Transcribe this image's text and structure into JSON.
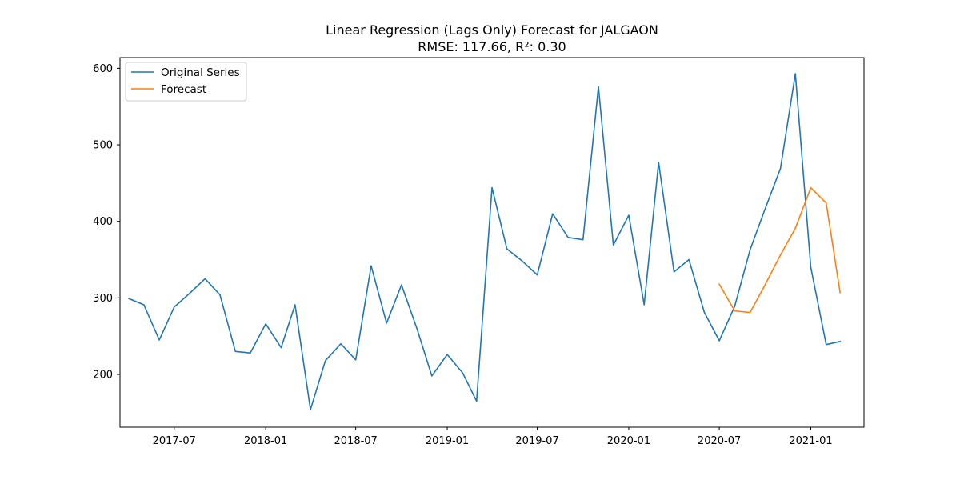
{
  "chart_data": {
    "type": "line",
    "title": "Linear Regression (Lags Only) Forecast for JALGAON",
    "subtitle": "RMSE: 117.66, R²: 0.30",
    "xlabel": "",
    "ylabel": "",
    "xlim": [
      "2017-03-14",
      "2021-04-18"
    ],
    "ylim": [
      131,
      614
    ],
    "x_ticks": [
      "2017-07",
      "2018-01",
      "2018-07",
      "2019-01",
      "2019-07",
      "2020-01",
      "2020-07",
      "2021-01"
    ],
    "y_ticks": [
      200,
      300,
      400,
      500,
      600
    ],
    "grid": false,
    "legend_position": "top-left",
    "series": [
      {
        "name": "Original Series",
        "color": "#1f77b4",
        "x": [
          "2017-04",
          "2017-05",
          "2017-06",
          "2017-07",
          "2017-08",
          "2017-09",
          "2017-10",
          "2017-11",
          "2017-12",
          "2018-01",
          "2018-02",
          "2018-03",
          "2018-04",
          "2018-05",
          "2018-06",
          "2018-07",
          "2018-08",
          "2018-09",
          "2018-10",
          "2018-11",
          "2018-12",
          "2019-01",
          "2019-02",
          "2019-03",
          "2019-04",
          "2019-05",
          "2019-06",
          "2019-07",
          "2019-08",
          "2019-09",
          "2019-10",
          "2019-11",
          "2019-12",
          "2020-01",
          "2020-02",
          "2020-03",
          "2020-04",
          "2020-05",
          "2020-06",
          "2020-07",
          "2020-08",
          "2020-09",
          "2020-10",
          "2020-11",
          "2020-12",
          "2021-01",
          "2021-02",
          "2021-03"
        ],
        "values": [
          299,
          291,
          245,
          288,
          306,
          325,
          304,
          230,
          228,
          266,
          235,
          291,
          154,
          218,
          240,
          219,
          342,
          267,
          317,
          260,
          198,
          226,
          202,
          165,
          444,
          364,
          348,
          330,
          410,
          379,
          376,
          576,
          369,
          408,
          291,
          477,
          334,
          350,
          281,
          244,
          289,
          363,
          416,
          469,
          593,
          340,
          239,
          243
        ]
      },
      {
        "name": "Forecast",
        "color": "#ff7f0e",
        "x": [
          "2020-07",
          "2020-08",
          "2020-09",
          "2020-10",
          "2020-11",
          "2020-12",
          "2021-01",
          "2021-02",
          "2021-03"
        ],
        "values": [
          318,
          283,
          281,
          317,
          356,
          391,
          444,
          424,
          307
        ]
      }
    ]
  }
}
